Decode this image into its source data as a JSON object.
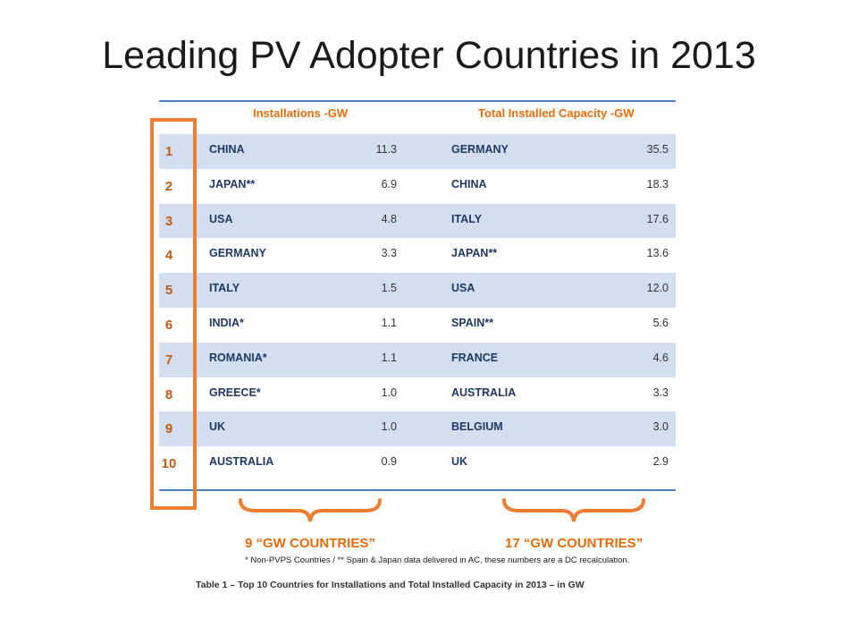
{
  "title": "Leading PV Adopter Countries in 2013",
  "table": {
    "col_installations": "Installations -GW",
    "col_capacity": "Total Installed Capacity -GW",
    "rows": [
      {
        "rank": "1",
        "inst_country": "CHINA",
        "inst_value": "11.3",
        "cap_country": "GERMANY",
        "cap_value": "35.5"
      },
      {
        "rank": "2",
        "inst_country": "JAPAN**",
        "inst_value": "6.9",
        "cap_country": "CHINA",
        "cap_value": "18.3"
      },
      {
        "rank": "3",
        "inst_country": "USA",
        "inst_value": "4.8",
        "cap_country": "ITALY",
        "cap_value": "17.6"
      },
      {
        "rank": "4",
        "inst_country": "GERMANY",
        "inst_value": "3.3",
        "cap_country": "JAPAN**",
        "cap_value": "13.6"
      },
      {
        "rank": "5",
        "inst_country": "ITALY",
        "inst_value": "1.5",
        "cap_country": "USA",
        "cap_value": "12.0"
      },
      {
        "rank": "6",
        "inst_country": "INDIA*",
        "inst_value": "1.1",
        "cap_country": "SPAIN**",
        "cap_value": "5.6"
      },
      {
        "rank": "7",
        "inst_country": "ROMANIA*",
        "inst_value": "1.1",
        "cap_country": "FRANCE",
        "cap_value": "4.6"
      },
      {
        "rank": "8",
        "inst_country": "GREECE*",
        "inst_value": "1.0",
        "cap_country": "AUSTRALIA",
        "cap_value": "3.3"
      },
      {
        "rank": "9",
        "inst_country": "UK",
        "inst_value": "1.0",
        "cap_country": "BELGIUM",
        "cap_value": "3.0"
      },
      {
        "rank": "10",
        "inst_country": "AUSTRALIA",
        "inst_value": "0.9",
        "cap_country": "UK",
        "cap_value": "2.9"
      }
    ]
  },
  "summary": {
    "left_label": "9 “GW COUNTRIES”",
    "right_label": "17 “GW COUNTRIES”",
    "footnote": "* Non-PVPS Countries / ** Spain & Japan data delivered in AC, these numbers are a DC recalculation.",
    "caption": "Table 1 – Top 10 Countries for Installations and Total Installed Capacity in 2013 – in GW"
  },
  "colors": {
    "accent_orange": "#ed7d31",
    "row_shade": "#d3dff0",
    "rule_blue": "#4f81bd",
    "country_text": "#1f3864"
  }
}
